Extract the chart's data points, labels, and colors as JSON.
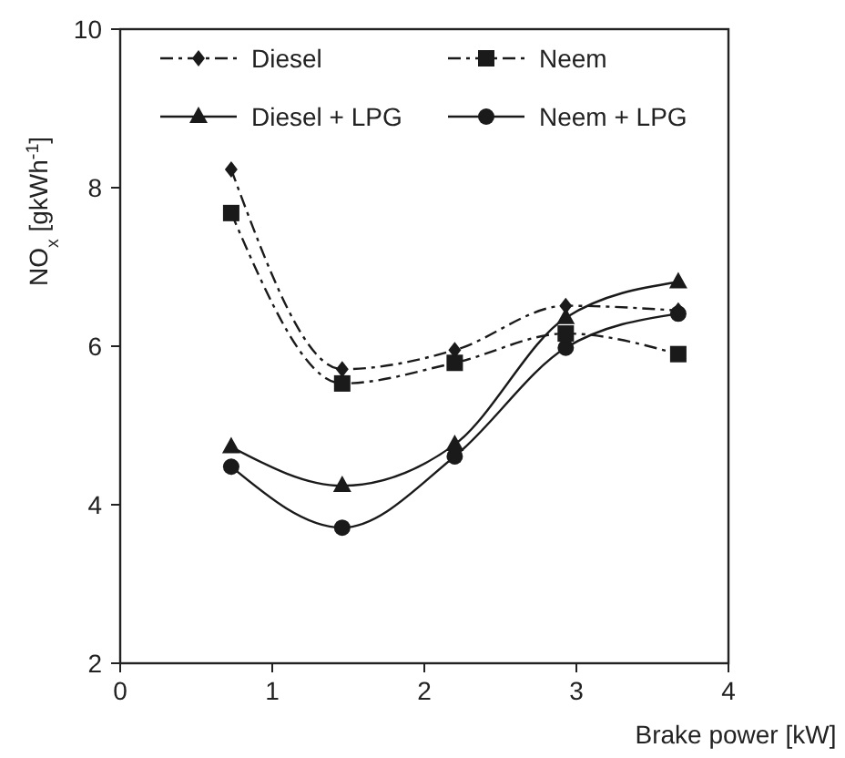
{
  "chart_data": {
    "type": "line",
    "xlabel": "Brake power [kW]",
    "ylabel": "NO$_{x}$ [gkWh$^{-1}$]",
    "xlim": [
      0,
      4
    ],
    "xticks": [
      0,
      1,
      2,
      3,
      4
    ],
    "ylim": [
      2,
      10
    ],
    "yticks": [
      2,
      4,
      6,
      8,
      10
    ],
    "grid": false,
    "legend": "top",
    "x": [
      0.73,
      1.46,
      2.2,
      2.93,
      3.67
    ],
    "series": [
      {
        "name": "Diesel",
        "color": "#1a1a1a",
        "marker": "diamond",
        "line_style": "dashed",
        "values": [
          8.23,
          5.71,
          5.95,
          6.51,
          6.45
        ]
      },
      {
        "name": "Neem",
        "color": "#1a1a1a",
        "marker": "square",
        "line_style": "dashed",
        "values": [
          7.68,
          5.53,
          5.79,
          6.16,
          5.9
        ]
      },
      {
        "name": "Diesel + LPG",
        "color": "#1a1a1a",
        "marker": "triangle",
        "line_style": "solid",
        "values": [
          4.73,
          4.24,
          4.76,
          6.36,
          6.81
        ]
      },
      {
        "name": "Neem + LPG",
        "color": "#1a1a1a",
        "marker": "circle",
        "line_style": "solid",
        "values": [
          4.48,
          3.71,
          4.61,
          5.98,
          6.41
        ]
      }
    ]
  }
}
